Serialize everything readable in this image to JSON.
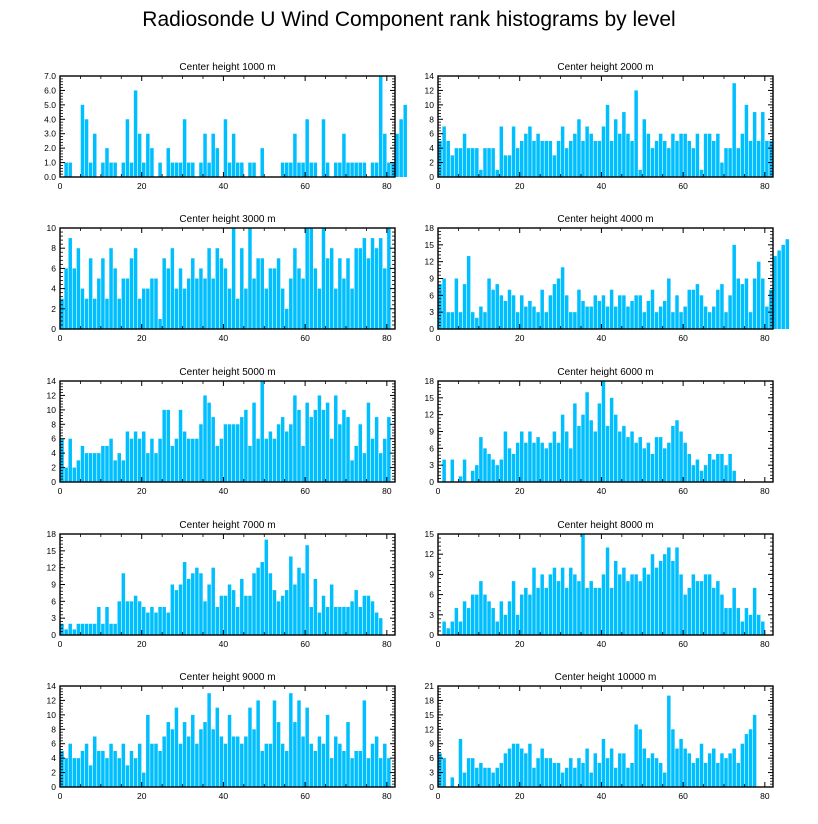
{
  "page_title": "Radiosonde U Wind Component rank histograms by level",
  "colors": {
    "bar": "#00bfff",
    "bar_edge": "#ffffff",
    "axis": "#000000"
  },
  "chart_data": [
    {
      "type": "bar",
      "title": "Center height 1000 m",
      "ylim": [
        0,
        7
      ],
      "yticks": [
        0,
        1,
        2,
        3,
        4,
        5,
        6,
        7
      ],
      "ytick_labels": [
        "0.0",
        "1.0",
        "2.0",
        "3.0",
        "4.0",
        "5.0",
        "6.0",
        "7.0"
      ],
      "xlim": [
        0,
        82
      ],
      "xticks": [
        0,
        20,
        40,
        60,
        80
      ],
      "values": [
        0,
        1,
        1,
        0,
        0,
        5,
        4,
        1,
        3,
        0,
        1,
        2,
        1,
        1,
        0,
        1,
        4,
        1,
        6,
        3,
        1,
        3,
        2,
        0,
        1,
        0,
        2,
        1,
        1,
        1,
        4,
        1,
        1,
        0,
        1,
        3,
        1,
        3,
        2,
        0,
        4,
        1,
        3,
        1,
        1,
        0,
        1,
        1,
        0,
        2,
        0,
        0,
        0,
        0,
        1,
        1,
        1,
        3,
        1,
        1,
        4,
        1,
        1,
        0,
        4,
        1,
        0,
        1,
        1,
        3,
        1,
        1,
        1,
        1,
        1,
        0,
        1,
        1,
        7,
        3,
        1,
        1,
        3,
        4,
        5
      ]
    },
    {
      "type": "bar",
      "title": "Center height 2000 m",
      "ylim": [
        0,
        14
      ],
      "yticks": [
        0,
        2,
        4,
        6,
        8,
        10,
        12,
        14
      ],
      "ytick_labels": [
        "0",
        "2",
        "4",
        "6",
        "8",
        "10",
        "12",
        "14"
      ],
      "xlim": [
        0,
        82
      ],
      "xticks": [
        0,
        20,
        40,
        60,
        80
      ],
      "values": [
        5,
        7,
        5,
        3,
        4,
        4,
        6,
        4,
        4,
        4,
        1,
        4,
        4,
        4,
        1,
        7,
        3,
        3,
        7,
        4,
        5,
        6,
        7,
        5,
        6,
        5,
        5,
        5,
        3,
        5,
        7,
        4,
        5,
        6,
        8,
        5,
        7,
        6,
        5,
        5,
        7,
        10,
        5,
        8,
        6,
        9,
        6,
        5,
        12,
        1,
        8,
        6,
        4,
        5,
        6,
        5,
        4,
        6,
        5,
        6,
        6,
        5,
        4,
        6,
        1,
        6,
        6,
        5,
        6,
        2,
        4,
        4,
        13,
        4,
        6,
        10,
        5,
        9,
        5,
        9,
        5,
        5
      ]
    },
    {
      "type": "bar",
      "title": "Center height 3000 m",
      "ylim": [
        0,
        10
      ],
      "yticks": [
        0,
        2,
        4,
        6,
        8,
        10
      ],
      "ytick_labels": [
        "0",
        "2",
        "4",
        "6",
        "8",
        "10"
      ],
      "xlim": [
        0,
        82
      ],
      "xticks": [
        0,
        20,
        40,
        60,
        80
      ],
      "values": [
        3,
        6,
        9,
        6,
        8,
        4,
        3,
        7,
        3,
        5,
        7,
        3,
        8,
        6,
        3,
        5,
        5,
        7,
        8,
        3,
        4,
        4,
        5,
        5,
        1,
        7,
        6,
        8,
        4,
        6,
        4,
        5,
        7,
        5,
        6,
        5,
        8,
        5,
        8,
        7,
        6,
        4,
        10,
        3,
        8,
        4,
        10,
        5,
        7,
        7,
        4,
        6,
        6,
        7,
        4,
        2,
        5,
        8,
        6,
        5,
        10,
        10,
        6,
        4,
        10,
        7,
        8,
        4,
        7,
        5,
        7,
        4,
        8,
        8,
        9,
        7,
        9,
        8,
        9,
        6,
        10
      ]
    },
    {
      "type": "bar",
      "title": "Center height 4000 m",
      "ylim": [
        0,
        18
      ],
      "yticks": [
        0,
        3,
        6,
        9,
        12,
        15,
        18
      ],
      "ytick_labels": [
        "0",
        "3",
        "6",
        "9",
        "12",
        "15",
        "18"
      ],
      "xlim": [
        0,
        82
      ],
      "xticks": [
        0,
        20,
        40,
        60,
        80
      ],
      "values": [
        8,
        9,
        3,
        3,
        9,
        3,
        8,
        13,
        3,
        2,
        4,
        3,
        9,
        7,
        8,
        6,
        5,
        7,
        6,
        3,
        6,
        4,
        5,
        4,
        3,
        7,
        3,
        6,
        8,
        9,
        11,
        6,
        3,
        3,
        7,
        5,
        4,
        4,
        6,
        5,
        6,
        4,
        7,
        4,
        6,
        6,
        4,
        5,
        6,
        6,
        3,
        5,
        7,
        3,
        4,
        5,
        9,
        3,
        6,
        3,
        4,
        7,
        7,
        8,
        6,
        4,
        3,
        4,
        7,
        8,
        3,
        6,
        15,
        9,
        8,
        9,
        3,
        9,
        12,
        9,
        4,
        7,
        13,
        14,
        15,
        16
      ]
    },
    {
      "type": "bar",
      "title": "Center height 5000 m",
      "ylim": [
        0,
        14
      ],
      "yticks": [
        0,
        2,
        4,
        6,
        8,
        10,
        12,
        14
      ],
      "ytick_labels": [
        "0",
        "2",
        "4",
        "6",
        "8",
        "10",
        "12",
        "14"
      ],
      "xlim": [
        0,
        82
      ],
      "xticks": [
        0,
        20,
        40,
        60,
        80
      ],
      "values": [
        6,
        2,
        6,
        2,
        3,
        5,
        4,
        4,
        4,
        4,
        5,
        5,
        6,
        3,
        4,
        3,
        7,
        6,
        7,
        6,
        7,
        4,
        6,
        4,
        6,
        10,
        10,
        5,
        6,
        10,
        7,
        6,
        6,
        6,
        8,
        12,
        11,
        9,
        5,
        6,
        8,
        8,
        8,
        8,
        9,
        10,
        5,
        11,
        6,
        14,
        6,
        7,
        6,
        8,
        9,
        7,
        8,
        12,
        10,
        5,
        11,
        9,
        10,
        12,
        10,
        11,
        6,
        12,
        8,
        10,
        9,
        3,
        5,
        8,
        4,
        11,
        6,
        9,
        4,
        6,
        9
      ]
    },
    {
      "type": "bar",
      "title": "Center height 6000 m",
      "ylim": [
        0,
        18
      ],
      "yticks": [
        0,
        3,
        6,
        9,
        12,
        15,
        18
      ],
      "ytick_labels": [
        "0",
        "3",
        "6",
        "9",
        "12",
        "15",
        "18"
      ],
      "xlim": [
        0,
        82
      ],
      "xticks": [
        0,
        20,
        40,
        60,
        80
      ],
      "values": [
        0,
        4,
        0,
        4,
        0,
        1,
        4,
        0,
        2,
        3,
        8,
        6,
        5,
        4,
        3,
        4,
        9,
        6,
        5,
        7,
        9,
        7,
        9,
        7,
        8,
        7,
        6,
        7,
        9,
        7,
        12,
        9,
        6,
        14,
        10,
        12,
        16,
        11,
        9,
        14,
        18,
        10,
        15,
        12,
        9,
        10,
        8,
        9,
        7,
        8,
        6,
        7,
        5,
        8,
        8,
        6,
        7,
        10,
        11,
        9,
        7,
        5,
        3,
        4,
        2,
        3,
        5,
        4,
        5,
        5,
        3,
        5,
        2
      ]
    },
    {
      "type": "bar",
      "title": "Center height 7000 m",
      "ylim": [
        0,
        18
      ],
      "yticks": [
        0,
        3,
        6,
        9,
        12,
        15,
        18
      ],
      "ytick_labels": [
        "0",
        "3",
        "6",
        "9",
        "12",
        "15",
        "18"
      ],
      "xlim": [
        0,
        82
      ],
      "xticks": [
        0,
        20,
        40,
        60,
        80
      ],
      "values": [
        2,
        1,
        2,
        1,
        2,
        2,
        2,
        2,
        2,
        5,
        2,
        5,
        2,
        2,
        6,
        11,
        6,
        6,
        7,
        6,
        5,
        4,
        5,
        4,
        5,
        5,
        4,
        9,
        8,
        9,
        13,
        10,
        11,
        12,
        11,
        6,
        9,
        12,
        5,
        7,
        7,
        9,
        8,
        5,
        10,
        7,
        7,
        11,
        12,
        13,
        17,
        11,
        8,
        6,
        7,
        8,
        14,
        9,
        12,
        11,
        16,
        5,
        10,
        4,
        7,
        5,
        9,
        5,
        5,
        5,
        5,
        6,
        8,
        5,
        7,
        7,
        6,
        4,
        3
      ]
    },
    {
      "type": "bar",
      "title": "Center height 8000 m",
      "ylim": [
        0,
        15
      ],
      "yticks": [
        0,
        3,
        6,
        9,
        12,
        15
      ],
      "ytick_labels": [
        "0",
        "3",
        "6",
        "9",
        "12",
        "15"
      ],
      "xlim": [
        0,
        82
      ],
      "xticks": [
        0,
        20,
        40,
        60,
        80
      ],
      "values": [
        0,
        2,
        1,
        2,
        4,
        2,
        5,
        4,
        6,
        6,
        8,
        6,
        5,
        4,
        2,
        5,
        3,
        5,
        8,
        3,
        6,
        7,
        6,
        10,
        7,
        9,
        7,
        9,
        10,
        8,
        10,
        7,
        10,
        9,
        8,
        15,
        7,
        8,
        7,
        7,
        9,
        13,
        7,
        11,
        9,
        10,
        8,
        9,
        9,
        8,
        10,
        9,
        12,
        10,
        11,
        12,
        13,
        11,
        13,
        9,
        6,
        7,
        9,
        8,
        8,
        9,
        9,
        7,
        8,
        6,
        4,
        4,
        7,
        4,
        2,
        4,
        3,
        7,
        3,
        2
      ]
    },
    {
      "type": "bar",
      "title": "Center height 9000 m",
      "ylim": [
        0,
        14
      ],
      "yticks": [
        0,
        2,
        4,
        6,
        8,
        10,
        12,
        14
      ],
      "ytick_labels": [
        "0",
        "2",
        "4",
        "6",
        "8",
        "10",
        "12",
        "14"
      ],
      "xlim": [
        0,
        82
      ],
      "xticks": [
        0,
        20,
        40,
        60,
        80
      ],
      "values": [
        5,
        4,
        6,
        4,
        4,
        5,
        6,
        3,
        7,
        5,
        5,
        4,
        6,
        5,
        4,
        6,
        3,
        5,
        4,
        6,
        2,
        10,
        6,
        6,
        5,
        7,
        9,
        8,
        11,
        6,
        9,
        7,
        10,
        6,
        8,
        9,
        13,
        8,
        11,
        7,
        6,
        10,
        7,
        7,
        6,
        7,
        11,
        8,
        12,
        5,
        6,
        6,
        12,
        9,
        6,
        5,
        13,
        9,
        12,
        7,
        11,
        6,
        5,
        7,
        6,
        10,
        4,
        7,
        6,
        5,
        9,
        4,
        5,
        5,
        12,
        4,
        6,
        7,
        4,
        6,
        4
      ]
    },
    {
      "type": "bar",
      "title": "Center height 10000 m",
      "ylim": [
        0,
        21
      ],
      "yticks": [
        0,
        3,
        6,
        9,
        12,
        15,
        18,
        21
      ],
      "ytick_labels": [
        "0",
        "3",
        "6",
        "9",
        "12",
        "15",
        "18",
        "21"
      ],
      "xlim": [
        0,
        82
      ],
      "xticks": [
        0,
        20,
        40,
        60,
        80
      ],
      "values": [
        7,
        6,
        0,
        2,
        0,
        10,
        3,
        6,
        6,
        4,
        5,
        4,
        4,
        3,
        4,
        5,
        7,
        8,
        9,
        9,
        8,
        7,
        9,
        4,
        6,
        8,
        6,
        6,
        5,
        5,
        3,
        4,
        6,
        4,
        6,
        5,
        8,
        3,
        7,
        5,
        10,
        6,
        8,
        4,
        7,
        7,
        4,
        5,
        13,
        12,
        8,
        6,
        7,
        6,
        5,
        3,
        19,
        12,
        8,
        10,
        8,
        7,
        5,
        6,
        9,
        5,
        7,
        8,
        5,
        7,
        6,
        7,
        8,
        5,
        9,
        11,
        12,
        15
      ]
    }
  ]
}
